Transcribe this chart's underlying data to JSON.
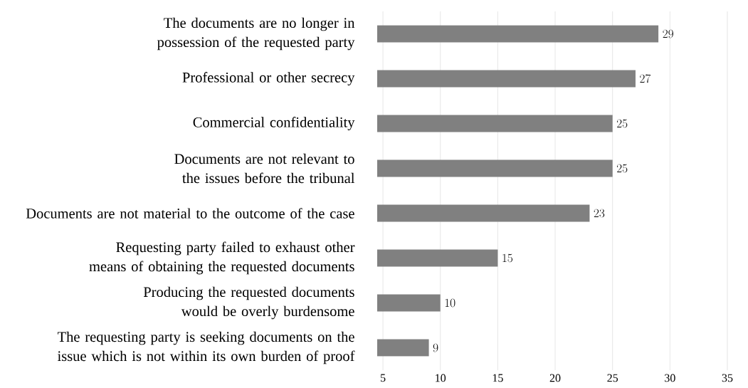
{
  "chart_data": {
    "type": "bar",
    "orientation": "horizontal",
    "categories": [
      "The documents are no longer in possession of the requested party",
      "Professional or other secrecy",
      "Commercial confidentiality",
      "Documents are not relevant to the issues before the tribunal",
      "Documents are not material to the outcome of the case",
      "Requesting party failed to exhaust other means of obtaining the requested documents",
      "Producing the requested documents would be overly burdensome",
      "The requesting party is seeking documents on the issue which is not within its own burden of proof"
    ],
    "values": [
      29,
      27,
      25,
      25,
      23,
      15,
      10,
      9
    ],
    "color": "#808080",
    "xlim": [
      4.5,
      35
    ],
    "xticks": [
      5,
      10,
      15,
      20,
      25,
      30,
      35
    ],
    "grid": "x",
    "data_labels": true
  }
}
